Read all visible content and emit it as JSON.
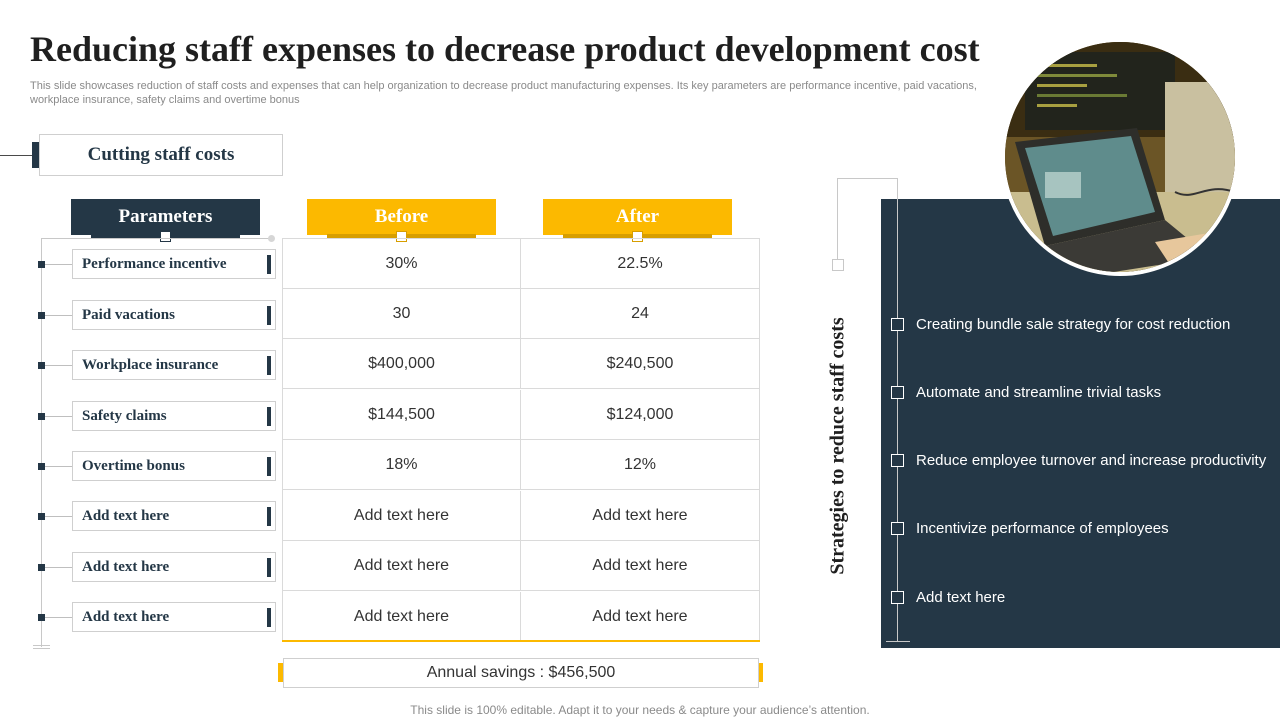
{
  "page": {
    "title": "Reducing staff expenses to decrease product development  cost",
    "subtitle": "This slide showcases reduction of staff costs and expenses that can help organization to decrease product manufacturing expenses. Its key parameters are performance incentive, paid vacations, workplace insurance, safety claims and overtime bonus",
    "footer": "This slide is 100% editable. Adapt it to your needs & capture your audience’s attention."
  },
  "section": {
    "label": "Cutting staff costs"
  },
  "table": {
    "headers": {
      "parameters": "Parameters",
      "before": "Before",
      "after": "After"
    },
    "rows": [
      {
        "parameter": "Performance  incentive",
        "before": "30%",
        "after": "22.5%"
      },
      {
        "parameter": "Paid  vacations",
        "before": "30",
        "after": "24"
      },
      {
        "parameter": "Workplace  insurance",
        "before": "$400,000",
        "after": "$240,500"
      },
      {
        "parameter": "Safety claims",
        "before": "$144,500",
        "after": "$124,000"
      },
      {
        "parameter": "Overtime  bonus",
        "before": "18%",
        "after": "12%"
      },
      {
        "parameter": "Add text here",
        "before": "Add text here",
        "after": "Add text here"
      },
      {
        "parameter": "Add text here",
        "before": "Add text here",
        "after": "Add text here"
      },
      {
        "parameter": "Add text here",
        "before": "Add text here",
        "after": "Add text here"
      }
    ],
    "savings": "Annual savings : $456,500"
  },
  "strategies": {
    "heading": "Strategies to reduce staff costs",
    "items": [
      "Creating bundle  sale strategy for cost reduction",
      "Automate and streamline trivial tasks",
      "Reduce employee turnover and increase productivity",
      "Incentivize performance of employees",
      "Add text here"
    ]
  },
  "colors": {
    "navy": "#243746",
    "yellow": "#fcb900"
  },
  "image": {
    "icon": "laptop-photo"
  }
}
